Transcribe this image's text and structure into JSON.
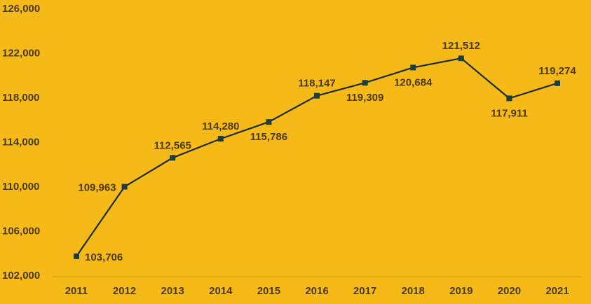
{
  "colors": {
    "background": "#F5BA18",
    "line": "#1f2a2a",
    "marker": "#17403f",
    "text": "#4a3a10",
    "axis": "#d49b10"
  },
  "chart_data": {
    "type": "line",
    "title": "",
    "xlabel": "",
    "ylabel": "",
    "categories": [
      "2011",
      "2012",
      "2013",
      "2014",
      "2015",
      "2016",
      "2017",
      "2018",
      "2019",
      "2020",
      "2021"
    ],
    "series": [
      {
        "values": [
          103706,
          109963,
          112565,
          114280,
          115786,
          118147,
          119309,
          120684,
          121512,
          117911,
          119274
        ],
        "data_labels": [
          "103,706",
          "109,963",
          "112,565",
          "114,280",
          "115,786",
          "118,147",
          "119,309",
          "120,684",
          "121,512",
          "117,911",
          "119,274"
        ],
        "marker": "square"
      }
    ],
    "ylim": [
      102000,
      126000
    ],
    "yticks": [
      102000,
      106000,
      110000,
      114000,
      118000,
      122000,
      126000
    ],
    "ytick_labels": [
      "102,000",
      "106,000",
      "110,000",
      "114,000",
      "118,000",
      "122,000",
      "126,000"
    ],
    "grid": false,
    "legend": "none"
  }
}
